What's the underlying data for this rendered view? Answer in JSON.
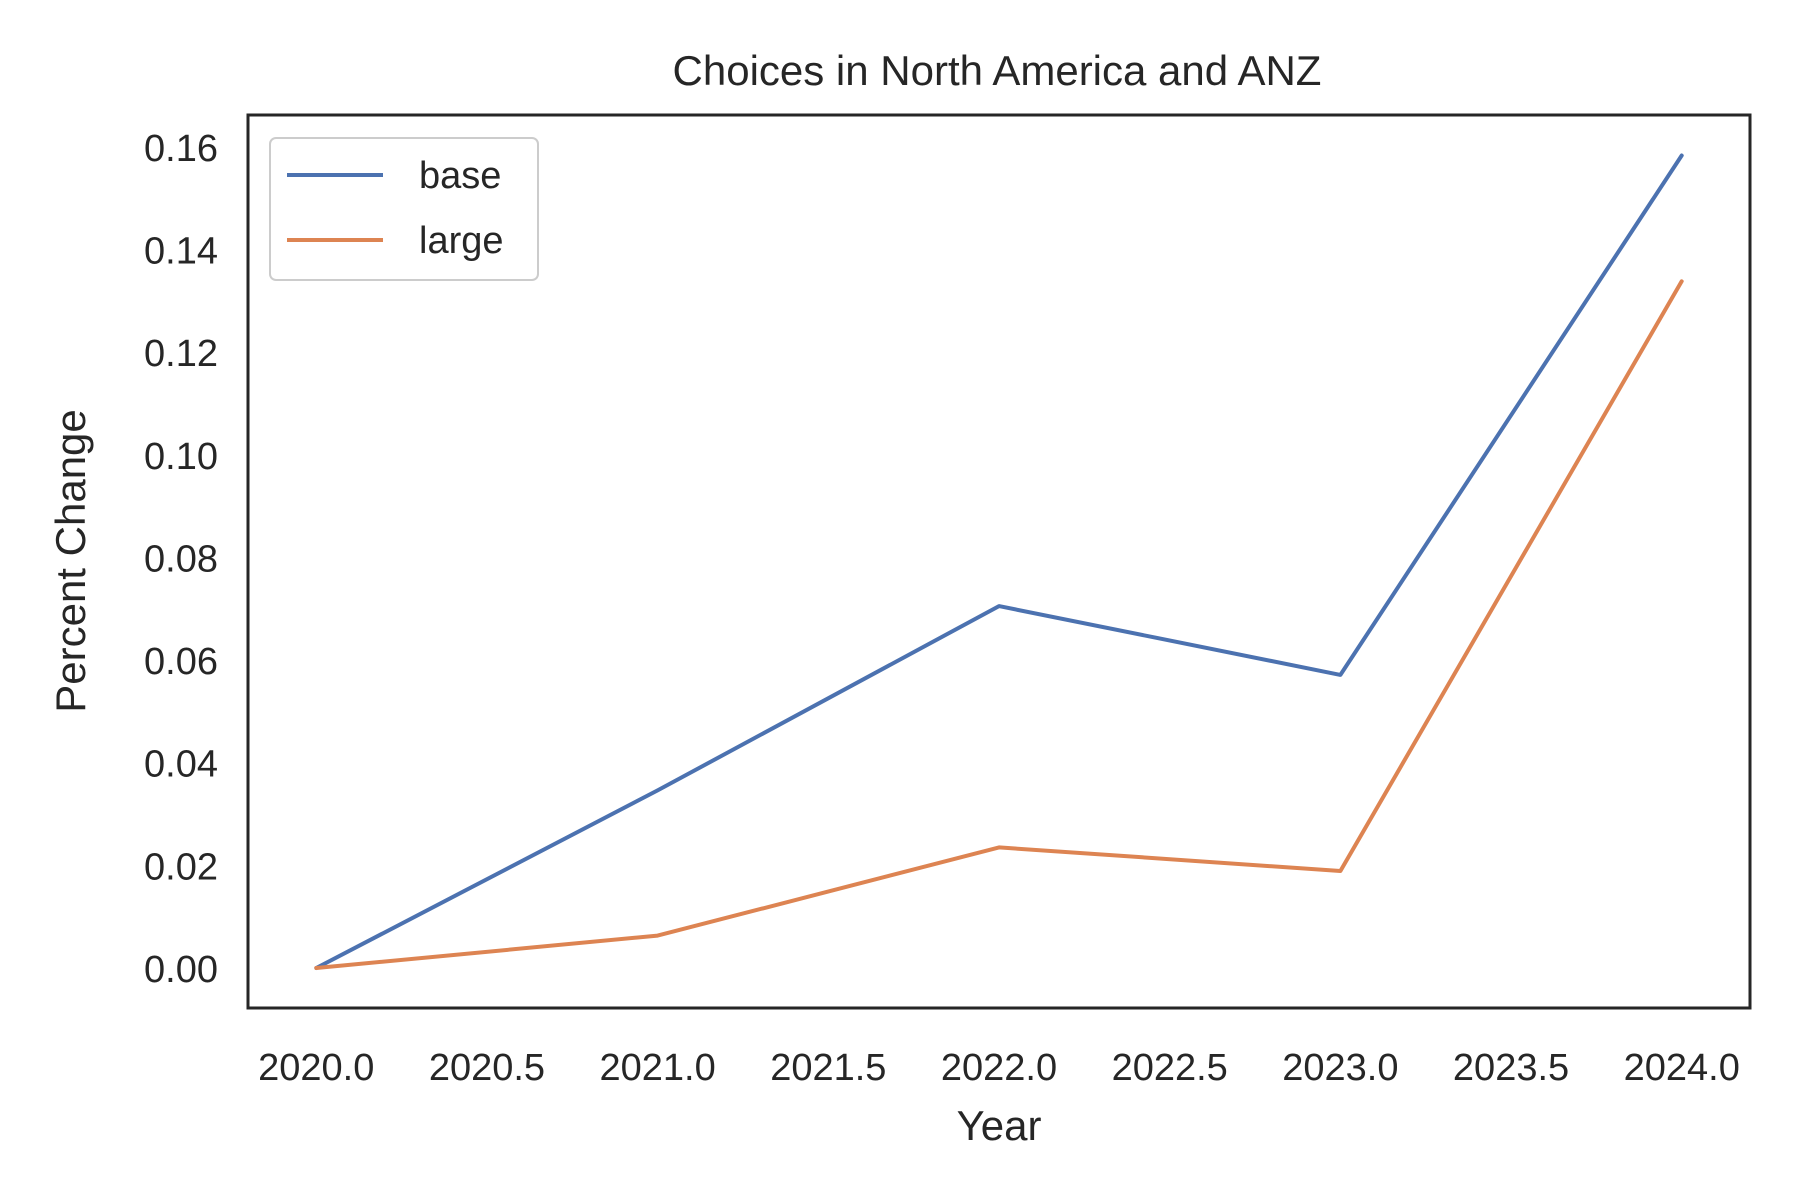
{
  "chart_data": {
    "type": "line",
    "title": "Choices in North America and ANZ",
    "xlabel": "Year",
    "ylabel": "Percent Change",
    "x": [
      2020,
      2021,
      2022,
      2023,
      2024
    ],
    "xlim": [
      2019.8,
      2024.2
    ],
    "ylim": [
      -0.0078,
      0.1662
    ],
    "xticks": [
      "2020.0",
      "2020.5",
      "2021.0",
      "2021.5",
      "2022.0",
      "2022.5",
      "2023.0",
      "2023.5",
      "2024.0"
    ],
    "yticks": [
      "0.00",
      "0.02",
      "0.04",
      "0.06",
      "0.08",
      "0.10",
      "0.12",
      "0.14",
      "0.16"
    ],
    "grid": false,
    "legend_position": "top-left",
    "series": [
      {
        "name": "base",
        "color": "#4c72b0",
        "values": [
          0.0,
          0.0346,
          0.0705,
          0.0571,
          0.1583
        ]
      },
      {
        "name": "large",
        "color": "#dd8452",
        "values": [
          0.0,
          0.0063,
          0.0235,
          0.0189,
          0.1338
        ]
      }
    ]
  }
}
